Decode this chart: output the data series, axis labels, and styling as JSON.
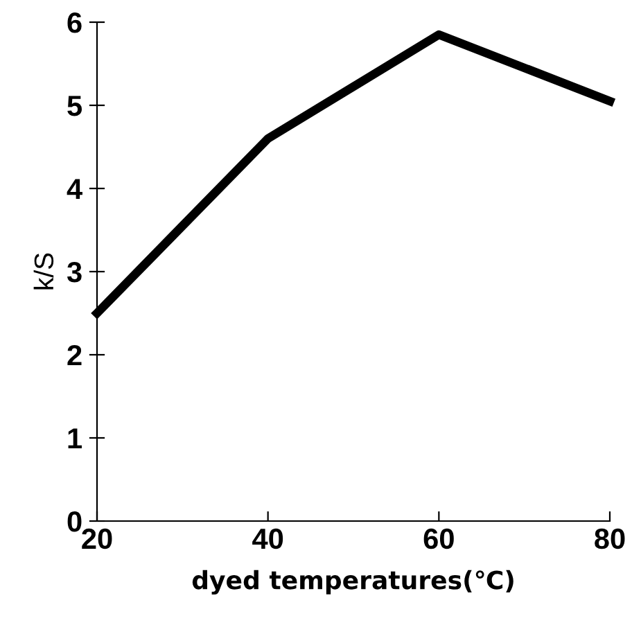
{
  "chart_data": {
    "type": "line",
    "xlabel": "dyed temperatures(℃)",
    "ylabel": "k/S",
    "x": [
      20,
      40,
      60,
      80
    ],
    "series": [
      {
        "color": "#000000",
        "values": [
          2.5,
          4.6,
          5.85,
          5.05
        ]
      }
    ],
    "xlim": [
      20,
      80
    ],
    "xticks": [
      20,
      40,
      60,
      80
    ],
    "ylim": [
      0,
      6
    ],
    "yticks": [
      0,
      1,
      2,
      3,
      4,
      5,
      6
    ],
    "grid": false,
    "marker": "none",
    "line_style": "solid"
  }
}
